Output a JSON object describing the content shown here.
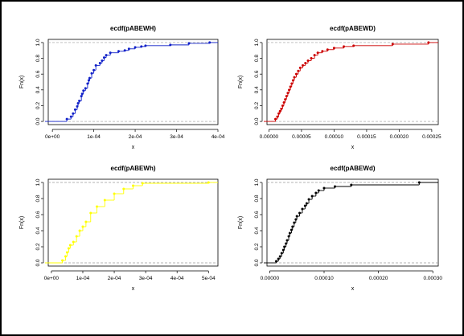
{
  "figure": {
    "panels": [
      {
        "title": "ecdf(pABEWH)",
        "xlabel": "x",
        "ylabel": "Fn(x)",
        "color": "#1020c8"
      },
      {
        "title": "ecdf(pABEWD)",
        "xlabel": "x",
        "ylabel": "Fn(x)",
        "color": "#cc0000"
      },
      {
        "title": "ecdf(pABEWh)",
        "xlabel": "x",
        "ylabel": "Fn(x)",
        "color": "#ffff00"
      },
      {
        "title": "ecdf(pABEWd)",
        "xlabel": "x",
        "ylabel": "Fn(x)",
        "color": "#000000"
      }
    ]
  },
  "chart_data": [
    {
      "type": "line",
      "title": "ecdf(pABEWH)",
      "xlabel": "x",
      "ylabel": "Fn(x)",
      "xlim": [
        -1e-05,
        0.0004
      ],
      "ylim": [
        -0.04,
        1.04
      ],
      "xticks": [
        0,
        0.0001,
        0.0002,
        0.0003,
        0.0004
      ],
      "xtick_labels": [
        "0e+00",
        "1e-04",
        "2e-04",
        "3e-04",
        "4e-04"
      ],
      "yticks": [
        0,
        0.2,
        0.4,
        0.6,
        0.8,
        1
      ],
      "ytick_labels": [
        "0.0",
        "0.2",
        "0.4",
        "0.6",
        "0.8",
        "1.0"
      ],
      "dashed_reference_lines": [
        0,
        1
      ],
      "color": "#1020c8",
      "x": [
        3.5e-05,
        4.5e-05,
        5e-05,
        5.5e-05,
        6e-05,
        6.2e-05,
        6.5e-05,
        7e-05,
        7.2e-05,
        7.5e-05,
        8e-05,
        8.5e-05,
        8.8e-05,
        9e-05,
        9.5e-05,
        0.0001,
        0.000105,
        0.000115,
        0.00012,
        0.000125,
        0.00013,
        0.00014,
        0.00016,
        0.000175,
        0.000185,
        0.0002,
        0.000215,
        0.000225,
        0.000285,
        0.00033,
        0.00038
      ],
      "y": [
        0.03,
        0.06,
        0.1,
        0.15,
        0.19,
        0.23,
        0.26,
        0.32,
        0.35,
        0.39,
        0.42,
        0.48,
        0.52,
        0.55,
        0.61,
        0.65,
        0.71,
        0.74,
        0.77,
        0.81,
        0.84,
        0.87,
        0.89,
        0.9,
        0.92,
        0.94,
        0.95,
        0.96,
        0.97,
        0.99,
        1.0
      ]
    },
    {
      "type": "line",
      "title": "ecdf(pABEWD)",
      "xlabel": "x",
      "ylabel": "Fn(x)",
      "xlim": [
        -3e-06,
        0.00026
      ],
      "ylim": [
        -0.04,
        1.04
      ],
      "xticks": [
        0,
        5e-05,
        0.0001,
        0.00015,
        0.0002,
        0.00025
      ],
      "xtick_labels": [
        "0.00000",
        "0.00005",
        "0.00010",
        "0.00015",
        "0.00020",
        "0.00025"
      ],
      "yticks": [
        0,
        0.2,
        0.4,
        0.6,
        0.8,
        1
      ],
      "ytick_labels": [
        "0.0",
        "0.2",
        "0.4",
        "0.6",
        "0.8",
        "1.0"
      ],
      "dashed_reference_lines": [
        0,
        1
      ],
      "color": "#cc0000",
      "x": [
        1e-05,
        1.3e-05,
        1.5e-05,
        1.7e-05,
        1.9e-05,
        2.1e-05,
        2.3e-05,
        2.5e-05,
        2.7e-05,
        2.9e-05,
        3.1e-05,
        3.3e-05,
        3.5e-05,
        3.7e-05,
        3.9e-05,
        4.2e-05,
        4.5e-05,
        4.8e-05,
        5.2e-05,
        5.6e-05,
        6e-05,
        6.5e-05,
        7e-05,
        7.5e-05,
        8.2e-05,
        9e-05,
        0.0001,
        0.000115,
        0.00013,
        0.00019,
        0.000245
      ],
      "y": [
        0.03,
        0.06,
        0.1,
        0.13,
        0.16,
        0.2,
        0.24,
        0.28,
        0.32,
        0.36,
        0.4,
        0.44,
        0.48,
        0.52,
        0.56,
        0.6,
        0.64,
        0.68,
        0.71,
        0.74,
        0.77,
        0.8,
        0.84,
        0.87,
        0.89,
        0.91,
        0.93,
        0.95,
        0.96,
        0.98,
        1.0
      ]
    },
    {
      "type": "line",
      "title": "ecdf(pABEWh)",
      "xlabel": "x",
      "ylabel": "Fn(x)",
      "xlim": [
        -1e-05,
        0.00053
      ],
      "ylim": [
        -0.04,
        1.04
      ],
      "xticks": [
        0,
        0.0001,
        0.0002,
        0.0003,
        0.0004,
        0.0005
      ],
      "xtick_labels": [
        "0e+00",
        "1e-04",
        "2e-04",
        "3e-04",
        "4e-04",
        "5e-04"
      ],
      "yticks": [
        0,
        0.2,
        0.4,
        0.6,
        0.8,
        1
      ],
      "ytick_labels": [
        "0.0",
        "0.2",
        "0.4",
        "0.6",
        "0.8",
        "1.0"
      ],
      "dashed_reference_lines": [
        0,
        1
      ],
      "color": "#ffff00",
      "x": [
        3.5e-05,
        4.5e-05,
        5e-05,
        5.5e-05,
        6e-05,
        7e-05,
        8e-05,
        9e-05,
        0.0001,
        0.00011,
        0.000125,
        0.000145,
        0.00017,
        0.0002,
        0.00023,
        0.00026,
        0.00029,
        0.0005
      ],
      "y": [
        0.03,
        0.08,
        0.13,
        0.18,
        0.22,
        0.26,
        0.33,
        0.4,
        0.45,
        0.51,
        0.62,
        0.7,
        0.78,
        0.86,
        0.92,
        0.96,
        0.99,
        1.0
      ]
    },
    {
      "type": "line",
      "title": "ecdf(pABEWd)",
      "xlabel": "x",
      "ylabel": "Fn(x)",
      "xlim": [
        -5e-06,
        0.00031
      ],
      "ylim": [
        -0.04,
        1.04
      ],
      "xticks": [
        0,
        0.0001,
        0.0002,
        0.0003
      ],
      "xtick_labels": [
        "0.00000",
        "0.00010",
        "0.00020",
        "0.00030"
      ],
      "yticks": [
        0,
        0.2,
        0.4,
        0.6,
        0.8,
        1
      ],
      "ytick_labels": [
        "0.0",
        "0.2",
        "0.4",
        "0.6",
        "0.8",
        "1.0"
      ],
      "dashed_reference_lines": [
        0,
        1
      ],
      "color": "#000000",
      "x": [
        1.2e-05,
        1.6e-05,
        1.9e-05,
        2.2e-05,
        2.5e-05,
        2.7e-05,
        3e-05,
        3.2e-05,
        3.5e-05,
        3.7e-05,
        4e-05,
        4.2e-05,
        4.5e-05,
        4.8e-05,
        5e-05,
        5.5e-05,
        6e-05,
        6.5e-05,
        6.8e-05,
        7.2e-05,
        7.8e-05,
        8.5e-05,
        9e-05,
        0.0001,
        0.00012,
        0.00015,
        0.000275
      ],
      "y": [
        0.02,
        0.05,
        0.08,
        0.12,
        0.16,
        0.2,
        0.24,
        0.28,
        0.33,
        0.37,
        0.41,
        0.45,
        0.5,
        0.54,
        0.58,
        0.62,
        0.67,
        0.71,
        0.74,
        0.79,
        0.83,
        0.87,
        0.9,
        0.93,
        0.95,
        0.97,
        1.0
      ]
    }
  ]
}
